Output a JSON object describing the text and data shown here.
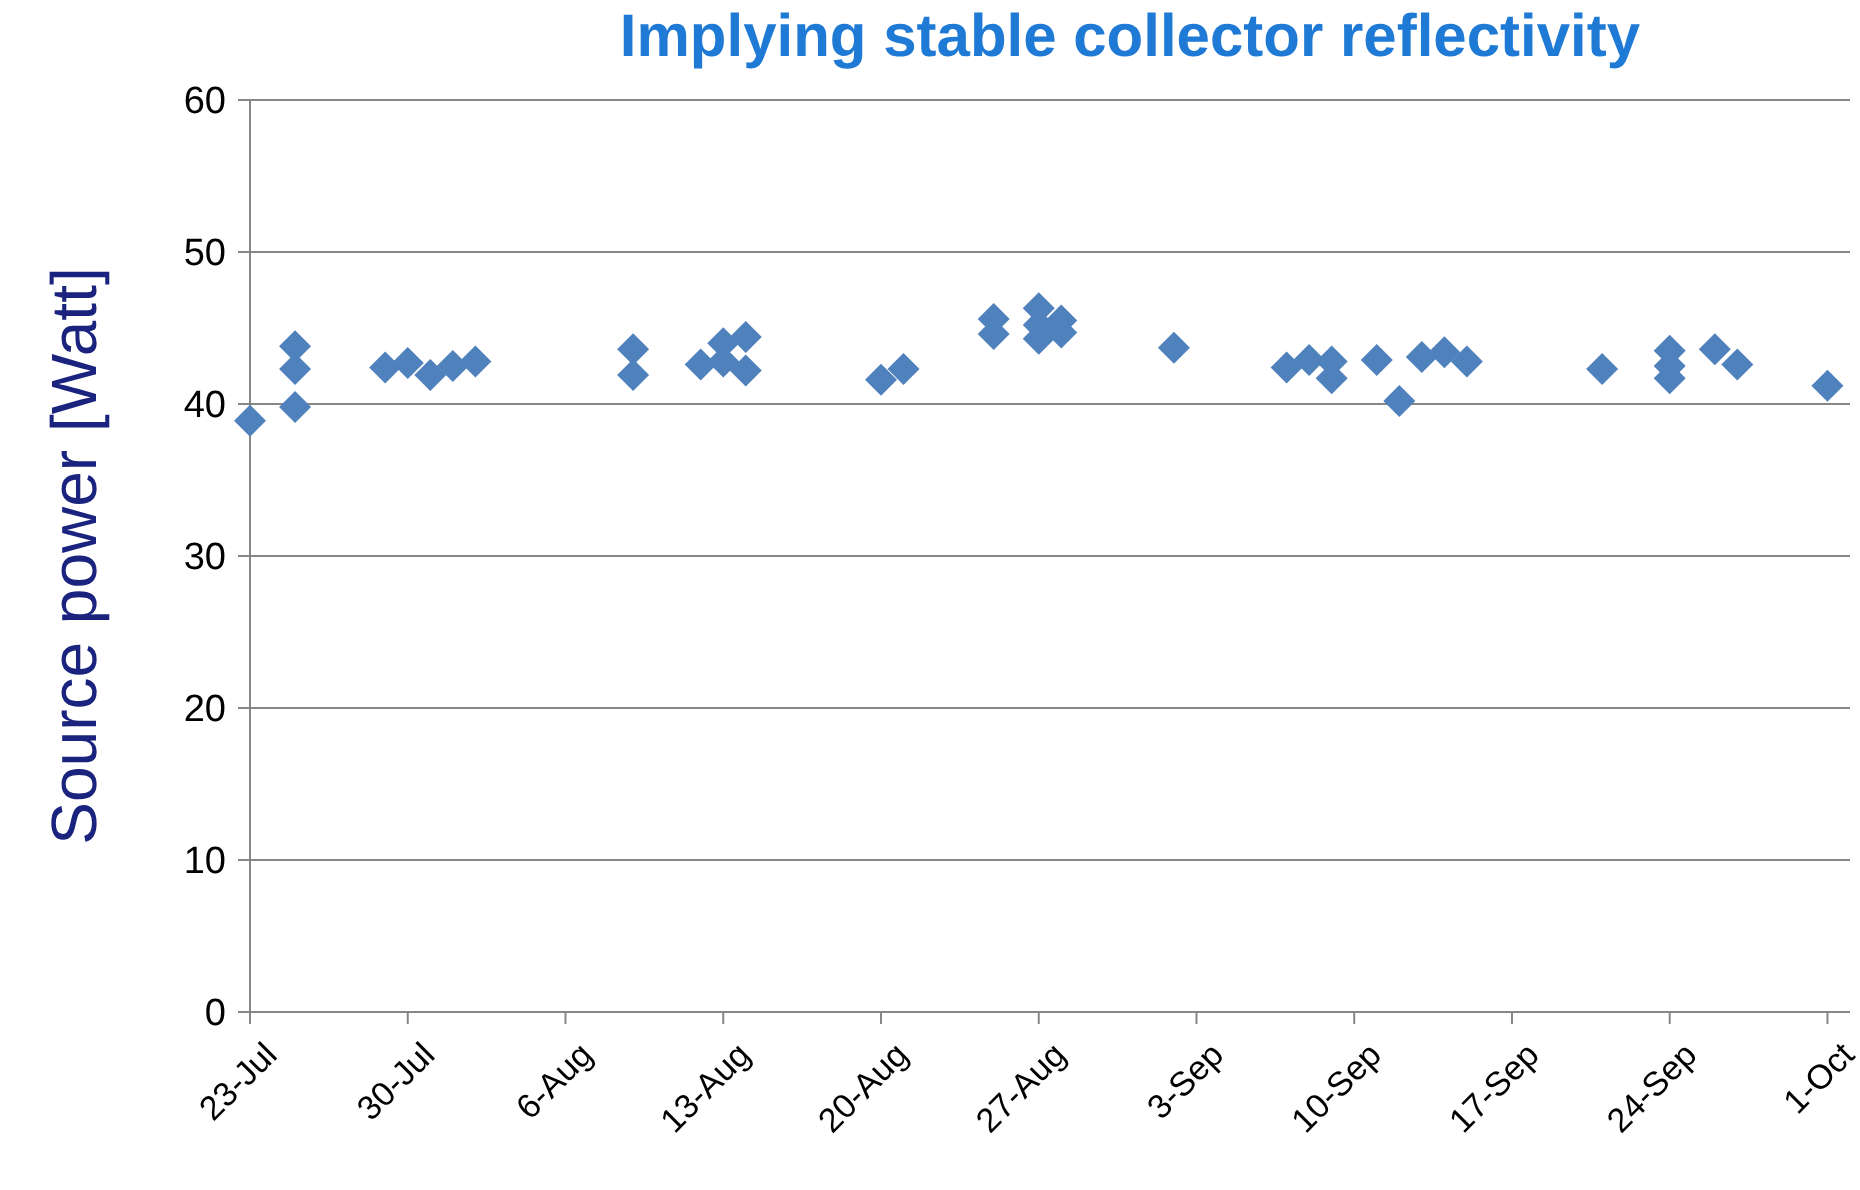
{
  "chart_data": {
    "type": "scatter",
    "title": "Implying stable collector reflectivity",
    "ylabel": "Source power [Watt]",
    "series": [
      {
        "color": "#4f81bd",
        "x": [
          "--07-23",
          "--07-25",
          "--07-25",
          "--07-25",
          "--07-29",
          "--07-30",
          "--07-31",
          "--08-01",
          "--08-02",
          "--08-09",
          "--08-09",
          "--08-12",
          "--08-13",
          "--08-13",
          "--08-14",
          "--08-14",
          "--08-20",
          "--08-21",
          "--08-25",
          "--08-25",
          "--08-27",
          "--08-27",
          "--08-27",
          "--08-28",
          "--08-28",
          "--09-02",
          "--09-07",
          "--09-08",
          "--09-09",
          "--09-09",
          "--09-11",
          "--09-12",
          "--09-13",
          "--09-14",
          "--09-15",
          "--09-21",
          "--09-24",
          "--09-24",
          "--09-24",
          "--09-26",
          "--09-27",
          "--10-01"
        ],
        "values": [
          38.9,
          43.8,
          42.3,
          39.8,
          42.4,
          42.7,
          41.9,
          42.5,
          42.8,
          43.6,
          41.9,
          42.6,
          44.0,
          42.8,
          44.4,
          42.2,
          41.6,
          42.3,
          45.6,
          44.6,
          46.3,
          44.3,
          45.2,
          45.5,
          44.7,
          43.7,
          42.4,
          42.9,
          42.8,
          41.7,
          42.9,
          40.2,
          43.1,
          43.4,
          42.8,
          42.3,
          43.5,
          42.5,
          41.7,
          43.6,
          42.6,
          41.2
        ]
      }
    ],
    "xlim": [
      "--07-23",
      "--10-02"
    ],
    "xticks": [
      {
        "value": "--07-23",
        "label": "23-Jul"
      },
      {
        "value": "--07-30",
        "label": "30-Jul"
      },
      {
        "value": "--08-06",
        "label": "6-Aug"
      },
      {
        "value": "--08-13",
        "label": "13-Aug"
      },
      {
        "value": "--08-20",
        "label": "20-Aug"
      },
      {
        "value": "--08-27",
        "label": "27-Aug"
      },
      {
        "value": "--09-03",
        "label": "3-Sep"
      },
      {
        "value": "--09-10",
        "label": "10-Sep"
      },
      {
        "value": "--09-17",
        "label": "17-Sep"
      },
      {
        "value": "--09-24",
        "label": "24-Sep"
      },
      {
        "value": "--10-01",
        "label": "1-Oct"
      }
    ],
    "ylim": [
      0,
      60
    ],
    "yticks": [
      0,
      10,
      20,
      30,
      40,
      50,
      60
    ],
    "grid": "y",
    "marker": "diamond"
  }
}
